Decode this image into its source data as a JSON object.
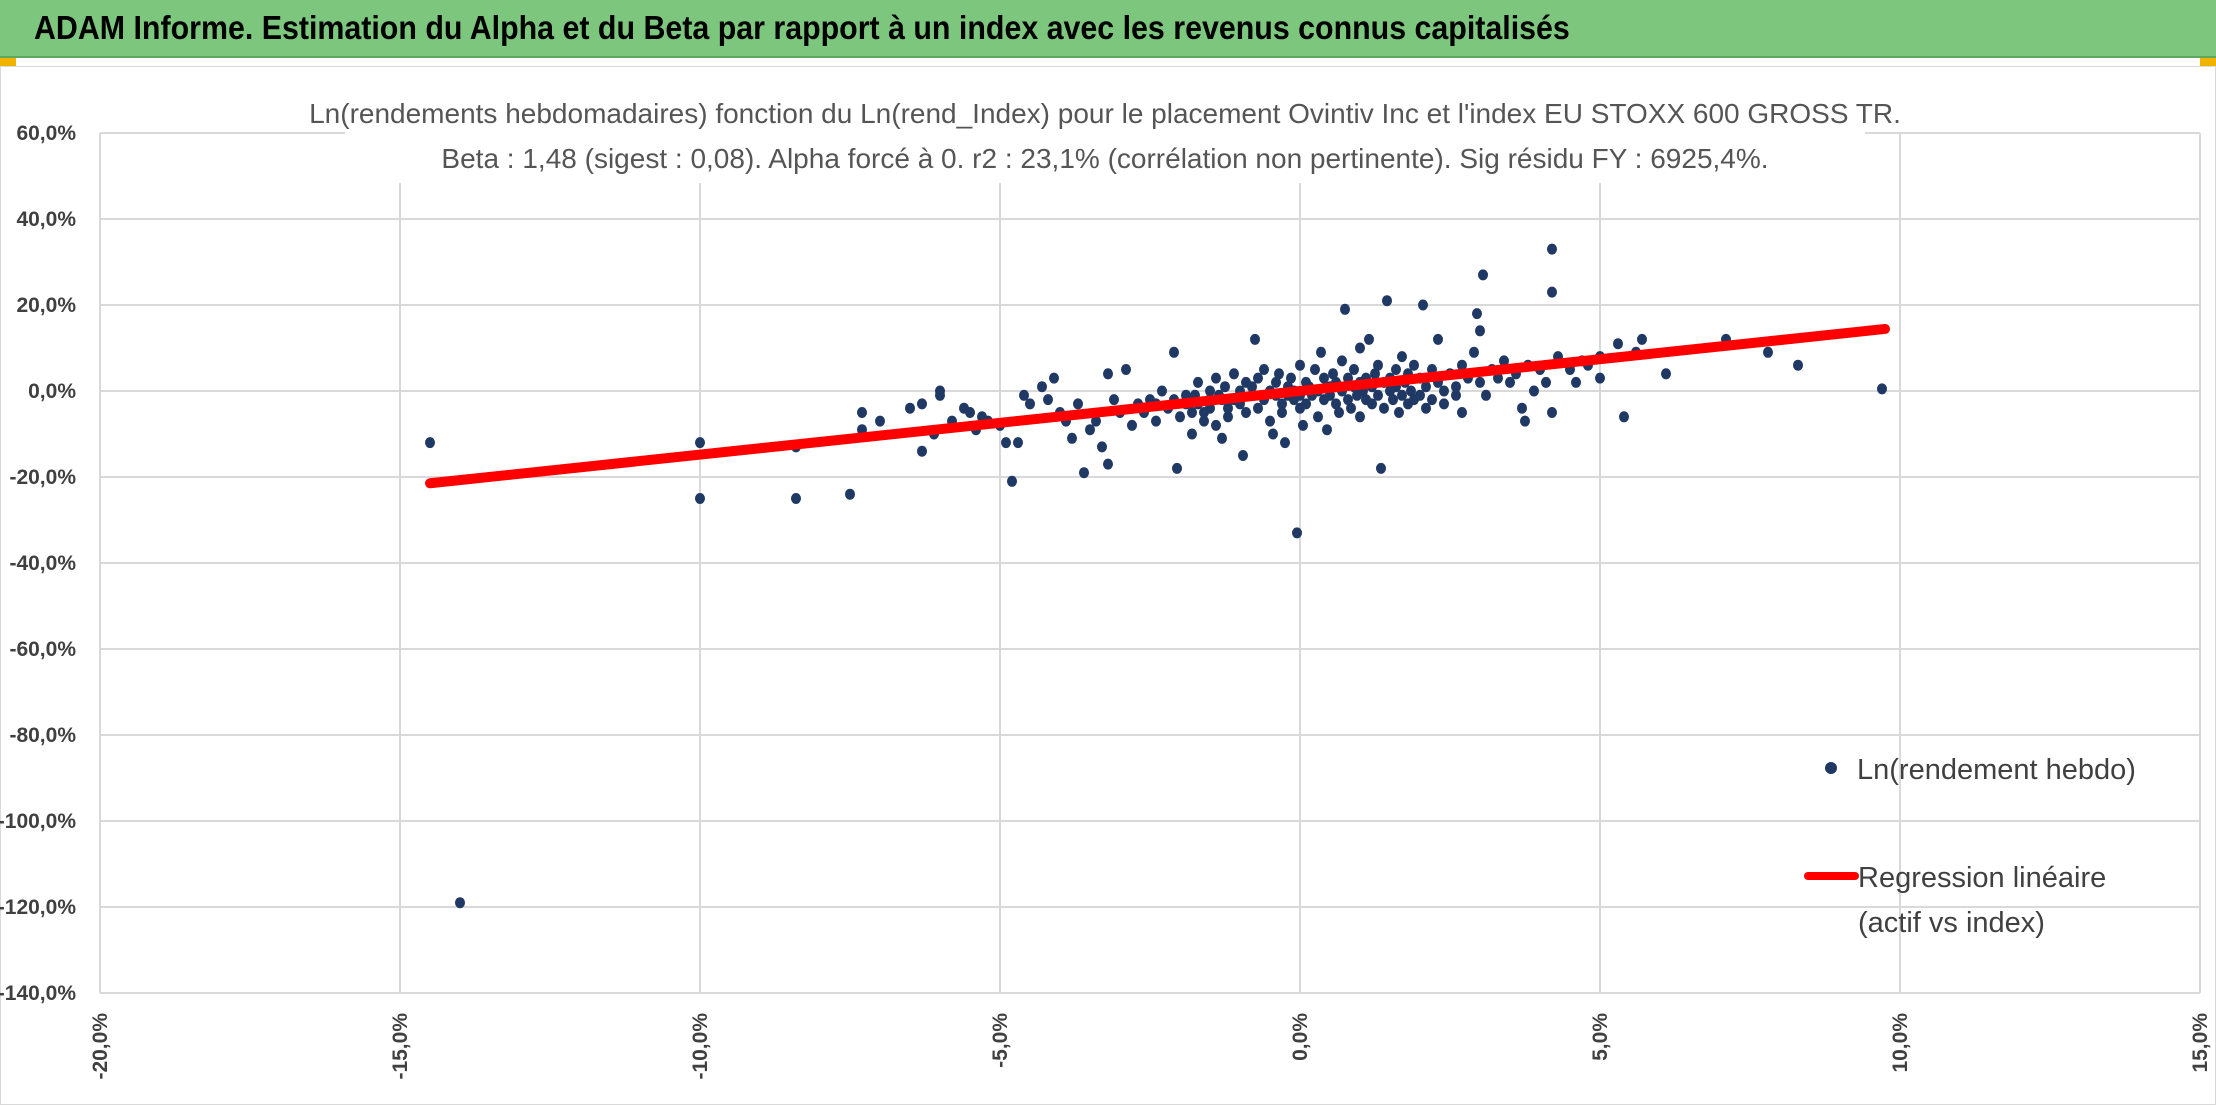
{
  "header": {
    "title": "ADAM Informe. Estimation du Alpha et du Beta par rapport à un index avec les revenus connus capitalisés"
  },
  "colors": {
    "header_bg": "#7dc67d",
    "points": "#1f3864",
    "regression": "#ff0000",
    "grid": "#d9d9d9",
    "corner": "#f0b400"
  },
  "chart_data": {
    "type": "scatter",
    "title": [
      "Ln(rendements hebdomadaires) fonction du Ln(rend_Index) pour le placement Ovintiv Inc et l'index EU STOXX 600 GROSS TR.",
      "Beta : 1,48 (sigest : 0,08). Alpha forcé à 0. r2 : 23,1% (corrélation non pertinente). Sig résidu FY : 6925,4%."
    ],
    "xlim": [
      -20,
      15
    ],
    "ylim": [
      -140,
      60
    ],
    "x_ticks": [
      -20,
      -15,
      -10,
      -5,
      0,
      5,
      10,
      15
    ],
    "y_ticks": [
      60,
      40,
      20,
      0,
      -20,
      -40,
      -60,
      -80,
      -100,
      -120,
      -140
    ],
    "x_tick_labels": [
      "-20,0%",
      "-15,0%",
      "-10,0%",
      "-5,0%",
      "0,0%",
      "5,0%",
      "10,0%",
      "15,0%"
    ],
    "y_tick_labels": [
      "60,0%",
      "40,0%",
      "20,0%",
      "0,0%",
      "-20,0%",
      "-40,0%",
      "-60,0%",
      "-80,0%",
      "-100,0%",
      "-120,0%",
      "-140,0%"
    ],
    "grid": true,
    "legend_position": "right",
    "series": [
      {
        "name": "Ln(rendement hebdo)",
        "kind": "scatter",
        "points": [
          [
            -14.5,
            -12
          ],
          [
            -14,
            -119
          ],
          [
            -10,
            -12
          ],
          [
            -10,
            -25
          ],
          [
            -8.4,
            -13
          ],
          [
            -8.4,
            -25
          ],
          [
            -7.5,
            -24
          ],
          [
            -7.3,
            -5
          ],
          [
            -7.3,
            -9
          ],
          [
            -7,
            -7
          ],
          [
            -6.5,
            -4
          ],
          [
            -6.3,
            -3
          ],
          [
            -6.3,
            -14
          ],
          [
            -6.1,
            -10
          ],
          [
            -6,
            0
          ],
          [
            -6,
            -1
          ],
          [
            -5.8,
            -7
          ],
          [
            -5.6,
            -4
          ],
          [
            -5.5,
            -5
          ],
          [
            -5.4,
            -9
          ],
          [
            -5.3,
            -6
          ],
          [
            -5.2,
            -7
          ],
          [
            -5,
            -8
          ],
          [
            -4.9,
            -12
          ],
          [
            -4.8,
            -21
          ],
          [
            -4.7,
            -12
          ],
          [
            -4.6,
            -1
          ],
          [
            -4.5,
            -3
          ],
          [
            -4.3,
            1
          ],
          [
            -4.2,
            -2
          ],
          [
            -4.1,
            3
          ],
          [
            -4,
            -5
          ],
          [
            -3.9,
            -7
          ],
          [
            -3.8,
            -11
          ],
          [
            -3.7,
            -3
          ],
          [
            -3.6,
            -19
          ],
          [
            -3.5,
            -9
          ],
          [
            -3.4,
            -7
          ],
          [
            -3.3,
            -13
          ],
          [
            -3.2,
            -17
          ],
          [
            -3.2,
            4
          ],
          [
            -3.1,
            -2
          ],
          [
            -3,
            -5
          ],
          [
            -2.9,
            5
          ],
          [
            -2.8,
            -8
          ],
          [
            -2.7,
            -3
          ],
          [
            -2.6,
            -5
          ],
          [
            -2.5,
            -2
          ],
          [
            -2.4,
            -7
          ],
          [
            -2.4,
            -3
          ],
          [
            -2.3,
            0
          ],
          [
            -2.2,
            -4
          ],
          [
            -2.1,
            -2
          ],
          [
            -2.1,
            9
          ],
          [
            -2.05,
            -18
          ],
          [
            -2,
            -6
          ],
          [
            -1.9,
            -3
          ],
          [
            -1.9,
            -1
          ],
          [
            -1.8,
            -5
          ],
          [
            -1.8,
            -10
          ],
          [
            -1.75,
            -1
          ],
          [
            -1.7,
            2
          ],
          [
            -1.7,
            -3
          ],
          [
            -1.6,
            -7
          ],
          [
            -1.6,
            -5
          ],
          [
            -1.5,
            -2
          ],
          [
            -1.5,
            0
          ],
          [
            -1.5,
            -4
          ],
          [
            -1.4,
            3
          ],
          [
            -1.4,
            -8
          ],
          [
            -1.35,
            -1
          ],
          [
            -1.3,
            -2
          ],
          [
            -1.3,
            -11
          ],
          [
            -1.25,
            1
          ],
          [
            -1.2,
            -4
          ],
          [
            -1.2,
            -6
          ],
          [
            -1.1,
            4
          ],
          [
            -1.1,
            -2
          ],
          [
            -1,
            0
          ],
          [
            -1,
            -3
          ],
          [
            -0.95,
            -15
          ],
          [
            -0.9,
            -5
          ],
          [
            -0.9,
            2
          ],
          [
            -0.8,
            1
          ],
          [
            -0.8,
            -1
          ],
          [
            -0.75,
            12
          ],
          [
            -0.7,
            -4
          ],
          [
            -0.7,
            3
          ],
          [
            -0.6,
            -2
          ],
          [
            -0.6,
            5
          ],
          [
            -0.5,
            0
          ],
          [
            -0.5,
            -7
          ],
          [
            -0.45,
            -10
          ],
          [
            -0.4,
            2
          ],
          [
            -0.4,
            -1
          ],
          [
            -0.35,
            4
          ],
          [
            -0.3,
            -3
          ],
          [
            -0.3,
            -5
          ],
          [
            -0.25,
            -12
          ],
          [
            -0.2,
            1
          ],
          [
            -0.2,
            -1
          ],
          [
            -0.15,
            3
          ],
          [
            -0.1,
            -2
          ],
          [
            -0.1,
            0
          ],
          [
            -0.05,
            -33
          ],
          [
            0,
            -4
          ],
          [
            0,
            6
          ],
          [
            0,
            -1
          ],
          [
            0.05,
            -8
          ],
          [
            0.1,
            2
          ],
          [
            0.1,
            -3
          ],
          [
            0.15,
            1
          ],
          [
            0.2,
            -1
          ],
          [
            0.25,
            5
          ],
          [
            0.3,
            0
          ],
          [
            0.3,
            -6
          ],
          [
            0.35,
            9
          ],
          [
            0.4,
            -2
          ],
          [
            0.4,
            3
          ],
          [
            0.45,
            -9
          ],
          [
            0.5,
            1
          ],
          [
            0.5,
            -1
          ],
          [
            0.55,
            4
          ],
          [
            0.6,
            2
          ],
          [
            0.6,
            -3
          ],
          [
            0.65,
            -5
          ],
          [
            0.7,
            7
          ],
          [
            0.7,
            0
          ],
          [
            0.75,
            19
          ],
          [
            0.8,
            -2
          ],
          [
            0.8,
            3
          ],
          [
            0.85,
            -4
          ],
          [
            0.9,
            1
          ],
          [
            0.9,
            5
          ],
          [
            0.95,
            -1
          ],
          [
            1,
            2
          ],
          [
            1,
            -6
          ],
          [
            1,
            10
          ],
          [
            1.05,
            0
          ],
          [
            1.1,
            3
          ],
          [
            1.1,
            -2
          ],
          [
            1.15,
            12
          ],
          [
            1.2,
            1
          ],
          [
            1.2,
            -3
          ],
          [
            1.25,
            4
          ],
          [
            1.3,
            -1
          ],
          [
            1.3,
            6
          ],
          [
            1.35,
            -18
          ],
          [
            1.4,
            2
          ],
          [
            1.4,
            -4
          ],
          [
            1.45,
            21
          ],
          [
            1.5,
            0
          ],
          [
            1.5,
            3
          ],
          [
            1.55,
            -2
          ],
          [
            1.6,
            5
          ],
          [
            1.6,
            1
          ],
          [
            1.65,
            -5
          ],
          [
            1.7,
            8
          ],
          [
            1.7,
            -1
          ],
          [
            1.75,
            2
          ],
          [
            1.8,
            4
          ],
          [
            1.8,
            -3
          ],
          [
            1.85,
            0
          ],
          [
            1.9,
            6
          ],
          [
            1.9,
            -2
          ],
          [
            2,
            3
          ],
          [
            2,
            -1
          ],
          [
            2.05,
            20
          ],
          [
            2.1,
            1
          ],
          [
            2.1,
            -4
          ],
          [
            2.2,
            5
          ],
          [
            2.2,
            -2
          ],
          [
            2.3,
            2
          ],
          [
            2.3,
            12
          ],
          [
            2.4,
            0
          ],
          [
            2.4,
            -3
          ],
          [
            2.5,
            4
          ],
          [
            2.6,
            1
          ],
          [
            2.6,
            -1
          ],
          [
            2.7,
            6
          ],
          [
            2.7,
            -5
          ],
          [
            2.8,
            3
          ],
          [
            2.9,
            9
          ],
          [
            2.95,
            18
          ],
          [
            3,
            14
          ],
          [
            3,
            2
          ],
          [
            3.05,
            27
          ],
          [
            3.1,
            -1
          ],
          [
            3.2,
            5
          ],
          [
            3.3,
            3
          ],
          [
            3.4,
            7
          ],
          [
            3.5,
            2
          ],
          [
            3.6,
            4
          ],
          [
            3.7,
            -4
          ],
          [
            3.75,
            -7
          ],
          [
            3.8,
            6
          ],
          [
            3.9,
            0
          ],
          [
            4,
            5
          ],
          [
            4.1,
            2
          ],
          [
            4.2,
            33
          ],
          [
            4.2,
            23
          ],
          [
            4.2,
            -5
          ],
          [
            4.3,
            8
          ],
          [
            4.5,
            5
          ],
          [
            4.6,
            2
          ],
          [
            4.7,
            7
          ],
          [
            4.8,
            6
          ],
          [
            5,
            8
          ],
          [
            5,
            3
          ],
          [
            5.3,
            11
          ],
          [
            5.4,
            -6
          ],
          [
            5.6,
            9
          ],
          [
            5.7,
            12
          ],
          [
            6.1,
            4
          ],
          [
            7.1,
            12
          ],
          [
            7.8,
            9
          ],
          [
            8.3,
            6
          ],
          [
            9.7,
            0.5
          ]
        ]
      },
      {
        "name": "Regression linéaire\n(actif vs index)",
        "kind": "line",
        "x": [
          -14.5,
          9.75
        ],
        "y": [
          -21.46,
          14.43
        ]
      }
    ]
  }
}
